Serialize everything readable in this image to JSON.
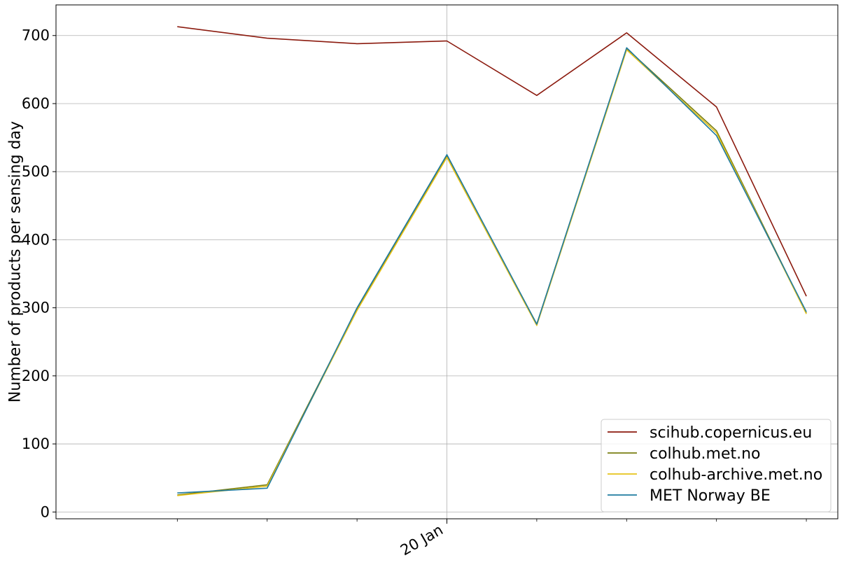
{
  "chart_data": {
    "type": "line",
    "title": "",
    "xlabel": "",
    "ylabel": "Number of products per sensing day",
    "x": [
      16,
      17,
      18,
      19,
      20,
      21,
      22,
      23,
      24
    ],
    "x_tick_positions": [
      17,
      18,
      19,
      20,
      21,
      22,
      23,
      24
    ],
    "x_tick_labels": [
      {
        "x": 20,
        "label": "20 Jan"
      }
    ],
    "xlim": [
      15.65,
      24.35
    ],
    "ylim": [
      -10,
      745
    ],
    "y_ticks": [
      0,
      100,
      200,
      300,
      400,
      500,
      600,
      700
    ],
    "grid": "on",
    "grid_x_at": [
      20
    ],
    "legend_position": "lower-right",
    "series": [
      {
        "name": "scihub.copernicus.eu",
        "color": "#8b1a0e",
        "values": [
          null,
          713,
          696,
          688,
          692,
          612,
          704,
          595,
          317
        ]
      },
      {
        "name": "colhub.met.no",
        "color": "#7a7f12",
        "values": [
          null,
          25,
          40,
          298,
          523,
          276,
          681,
          560,
          292
        ]
      },
      {
        "name": "colhub-archive.met.no",
        "color": "#e6c21a",
        "values": [
          null,
          24,
          38,
          296,
          521,
          274,
          679,
          557,
          291
        ]
      },
      {
        "name": "MET Norway BE",
        "color": "#1f7ba0",
        "values": [
          null,
          28,
          35,
          300,
          525,
          276,
          682,
          553,
          294
        ]
      }
    ]
  }
}
